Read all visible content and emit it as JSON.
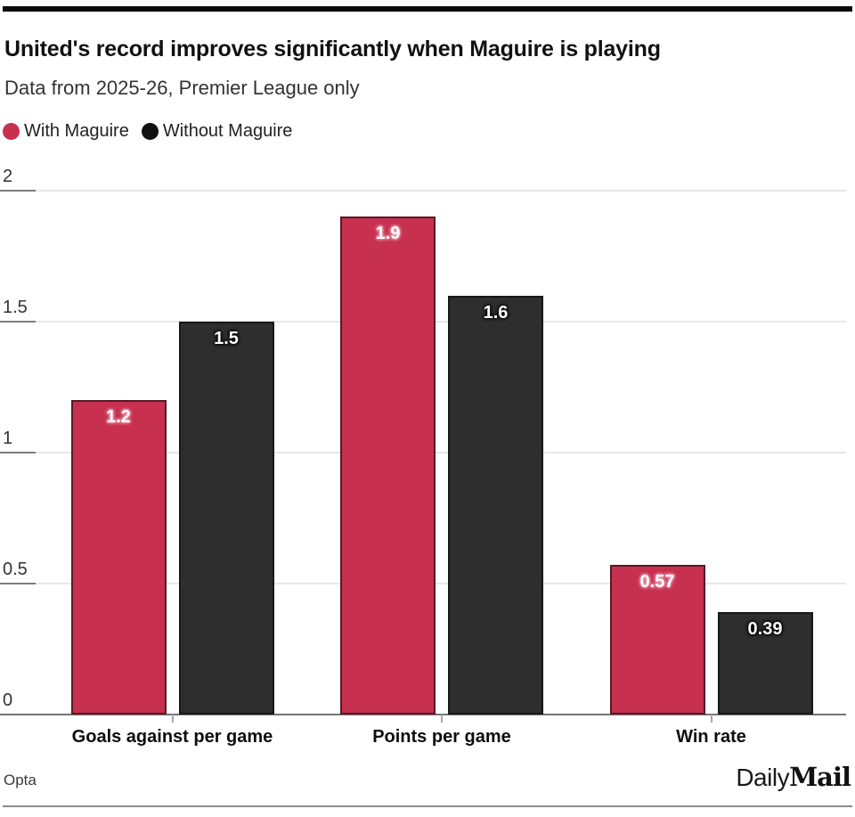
{
  "header": {
    "title": "United's record improves significantly when Maguire is playing",
    "subtitle": "Data from 2025-26, Premier League only"
  },
  "legend": [
    {
      "label": "With Maguire",
      "color": "#c7304f"
    },
    {
      "label": "Without Maguire",
      "color": "#111111"
    }
  ],
  "chart_data": {
    "type": "bar",
    "title": "United's record improves significantly when Maguire is playing",
    "subtitle": "Data from 2025-26, Premier League only",
    "categories": [
      "Goals against per game",
      "Points per game",
      "Win rate"
    ],
    "series": [
      {
        "name": "With Maguire",
        "color": "#c7304f",
        "label_halo": "#efa3b3",
        "values": [
          1.2,
          1.9,
          0.57
        ],
        "value_labels": [
          "1.2",
          "1.9",
          "0.57"
        ]
      },
      {
        "name": "Without Maguire",
        "color": "#2e2e2e",
        "label_halo": "#000000",
        "values": [
          1.5,
          1.6,
          0.39
        ],
        "value_labels": [
          "1.5",
          "1.6",
          "0.39"
        ]
      }
    ],
    "ylim": [
      0,
      2
    ],
    "yticks": [
      0,
      0.5,
      1,
      1.5,
      2
    ],
    "ytick_labels": [
      "0",
      "0.5",
      "1",
      "1.5",
      "2"
    ],
    "grid": "horizontal",
    "legend_position": "top",
    "colors": {
      "gridline": "#e7e7e7",
      "axis_tick_dark": "#7d7d7d",
      "baseline": "#757575",
      "x_tick": "#a8a8a8",
      "bar_border": "rgba(10,10,10,0.6)"
    }
  },
  "footer": {
    "source": "Opta",
    "logo_daily": "Daily",
    "logo_mail": "Mail"
  }
}
